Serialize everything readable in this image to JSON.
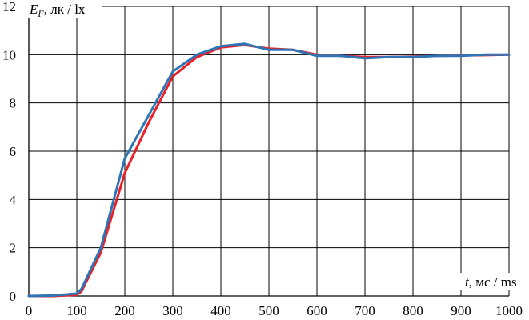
{
  "chart_data": {
    "type": "line",
    "title": "",
    "xlabel": "t, мс / ms",
    "ylabel": "E_F, лк / lx",
    "xlim": [
      0,
      1000
    ],
    "ylim": [
      0,
      12
    ],
    "x_ticks": [
      0,
      100,
      200,
      300,
      400,
      500,
      600,
      700,
      800,
      900,
      1000
    ],
    "y_ticks": [
      0,
      2,
      4,
      6,
      8,
      10,
      12
    ],
    "grid": true,
    "legend": "none",
    "series": [
      {
        "color": "#e8202a",
        "x": [
          0,
          50,
          100,
          110,
          150,
          200,
          250,
          300,
          350,
          400,
          450,
          500,
          550,
          600,
          650,
          700,
          750,
          800,
          850,
          900,
          950,
          1000
        ],
        "y": [
          0.0,
          0.0,
          0.05,
          0.2,
          1.8,
          5.1,
          7.2,
          9.1,
          9.9,
          10.3,
          10.4,
          10.25,
          10.2,
          10.0,
          9.95,
          9.9,
          9.9,
          9.92,
          9.95,
          9.97,
          9.98,
          10.0
        ]
      },
      {
        "color": "#2e75b6",
        "x": [
          0,
          50,
          100,
          110,
          150,
          200,
          250,
          300,
          350,
          400,
          450,
          500,
          550,
          600,
          650,
          700,
          750,
          800,
          850,
          900,
          950,
          1000
        ],
        "y": [
          0.0,
          0.02,
          0.1,
          0.3,
          2.0,
          5.7,
          7.5,
          9.3,
          10.0,
          10.35,
          10.45,
          10.2,
          10.2,
          9.95,
          9.95,
          9.85,
          9.9,
          9.9,
          9.95,
          9.95,
          10.0,
          10.0
        ]
      }
    ]
  }
}
